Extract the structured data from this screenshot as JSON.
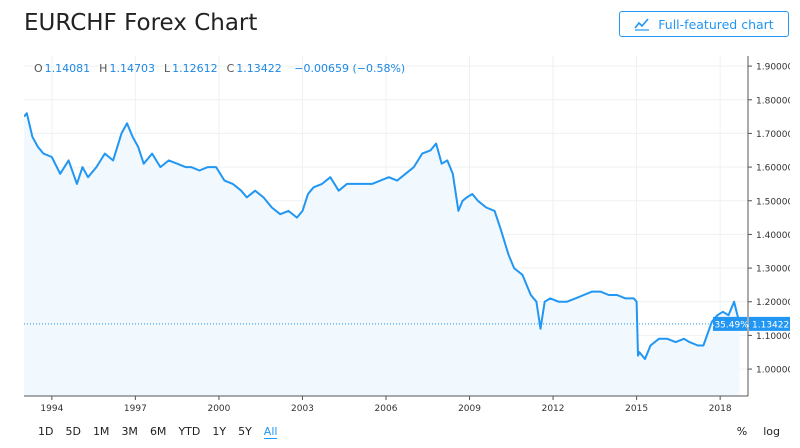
{
  "header": {
    "title": "EURCHF Forex Chart",
    "full_chart_label": "Full-featured chart"
  },
  "ohlc": {
    "o_label": "O",
    "o": "1.14081",
    "h_label": "H",
    "h": "1.14703",
    "l_label": "L",
    "l": "1.12612",
    "c_label": "C",
    "c": "1.13422",
    "change": "−0.00659 (−0.58%)"
  },
  "price_badge": {
    "pct": "-35.49%",
    "price": "1.13422"
  },
  "ranges": [
    "1D",
    "5D",
    "1M",
    "3M",
    "6M",
    "YTD",
    "1Y",
    "5Y",
    "All"
  ],
  "active_range": "All",
  "scale_buttons": [
    "%",
    "log"
  ],
  "colors": {
    "accent": "#2196f3",
    "line": "#2196f3",
    "fill": "#f1f8fe"
  },
  "chart_data": {
    "type": "area",
    "title": "EURCHF Forex Chart",
    "xlabel": "",
    "ylabel": "",
    "xlim": [
      1993.0,
      2019.0
    ],
    "ylim": [
      0.92,
      1.93
    ],
    "x_ticks": [
      1994,
      1997,
      2000,
      2003,
      2006,
      2009,
      2012,
      2015,
      2018
    ],
    "y_ticks": [
      "1.90000",
      "1.80000",
      "1.70000",
      "1.60000",
      "1.50000",
      "1.40000",
      "1.30000",
      "1.20000",
      "1.10000",
      "1.00000"
    ],
    "grid": true,
    "last_value": 1.13422,
    "x": [
      1993.0,
      1993.1,
      1993.3,
      1993.5,
      1993.7,
      1994.0,
      1994.3,
      1994.6,
      1994.9,
      1995.1,
      1995.3,
      1995.6,
      1995.9,
      1996.2,
      1996.5,
      1996.7,
      1996.9,
      1997.1,
      1997.3,
      1997.6,
      1997.9,
      1998.2,
      1998.5,
      1998.8,
      1999.0,
      1999.3,
      1999.6,
      1999.9,
      2000.2,
      2000.5,
      2000.8,
      2001.0,
      2001.3,
      2001.6,
      2001.9,
      2002.2,
      2002.5,
      2002.8,
      2003.0,
      2003.2,
      2003.4,
      2003.7,
      2004.0,
      2004.3,
      2004.6,
      2004.9,
      2005.2,
      2005.5,
      2005.8,
      2006.1,
      2006.4,
      2006.7,
      2007.0,
      2007.3,
      2007.6,
      2007.8,
      2008.0,
      2008.2,
      2008.4,
      2008.6,
      2008.75,
      2008.9,
      2009.1,
      2009.3,
      2009.6,
      2009.9,
      2010.1,
      2010.4,
      2010.6,
      2010.9,
      2011.2,
      2011.4,
      2011.55,
      2011.7,
      2011.9,
      2012.2,
      2012.5,
      2012.8,
      2013.1,
      2013.4,
      2013.7,
      2014.0,
      2014.3,
      2014.6,
      2014.9,
      2015.0,
      2015.05,
      2015.1,
      2015.3,
      2015.5,
      2015.8,
      2016.1,
      2016.4,
      2016.7,
      2016.9,
      2017.2,
      2017.4,
      2017.7,
      2017.9,
      2018.1,
      2018.3,
      2018.5,
      2018.7
    ],
    "values": [
      1.75,
      1.76,
      1.69,
      1.66,
      1.64,
      1.63,
      1.58,
      1.62,
      1.55,
      1.6,
      1.57,
      1.6,
      1.64,
      1.62,
      1.7,
      1.73,
      1.69,
      1.66,
      1.61,
      1.64,
      1.6,
      1.62,
      1.61,
      1.6,
      1.6,
      1.59,
      1.6,
      1.6,
      1.56,
      1.55,
      1.53,
      1.51,
      1.53,
      1.51,
      1.48,
      1.46,
      1.47,
      1.45,
      1.47,
      1.52,
      1.54,
      1.55,
      1.57,
      1.53,
      1.55,
      1.55,
      1.55,
      1.55,
      1.56,
      1.57,
      1.56,
      1.58,
      1.6,
      1.64,
      1.65,
      1.67,
      1.61,
      1.62,
      1.58,
      1.47,
      1.5,
      1.51,
      1.52,
      1.5,
      1.48,
      1.47,
      1.42,
      1.34,
      1.3,
      1.28,
      1.22,
      1.2,
      1.12,
      1.2,
      1.21,
      1.2,
      1.2,
      1.21,
      1.22,
      1.23,
      1.23,
      1.22,
      1.22,
      1.21,
      1.21,
      1.2,
      1.04,
      1.05,
      1.03,
      1.07,
      1.09,
      1.09,
      1.08,
      1.09,
      1.08,
      1.07,
      1.07,
      1.14,
      1.16,
      1.17,
      1.16,
      1.2,
      1.134
    ]
  }
}
